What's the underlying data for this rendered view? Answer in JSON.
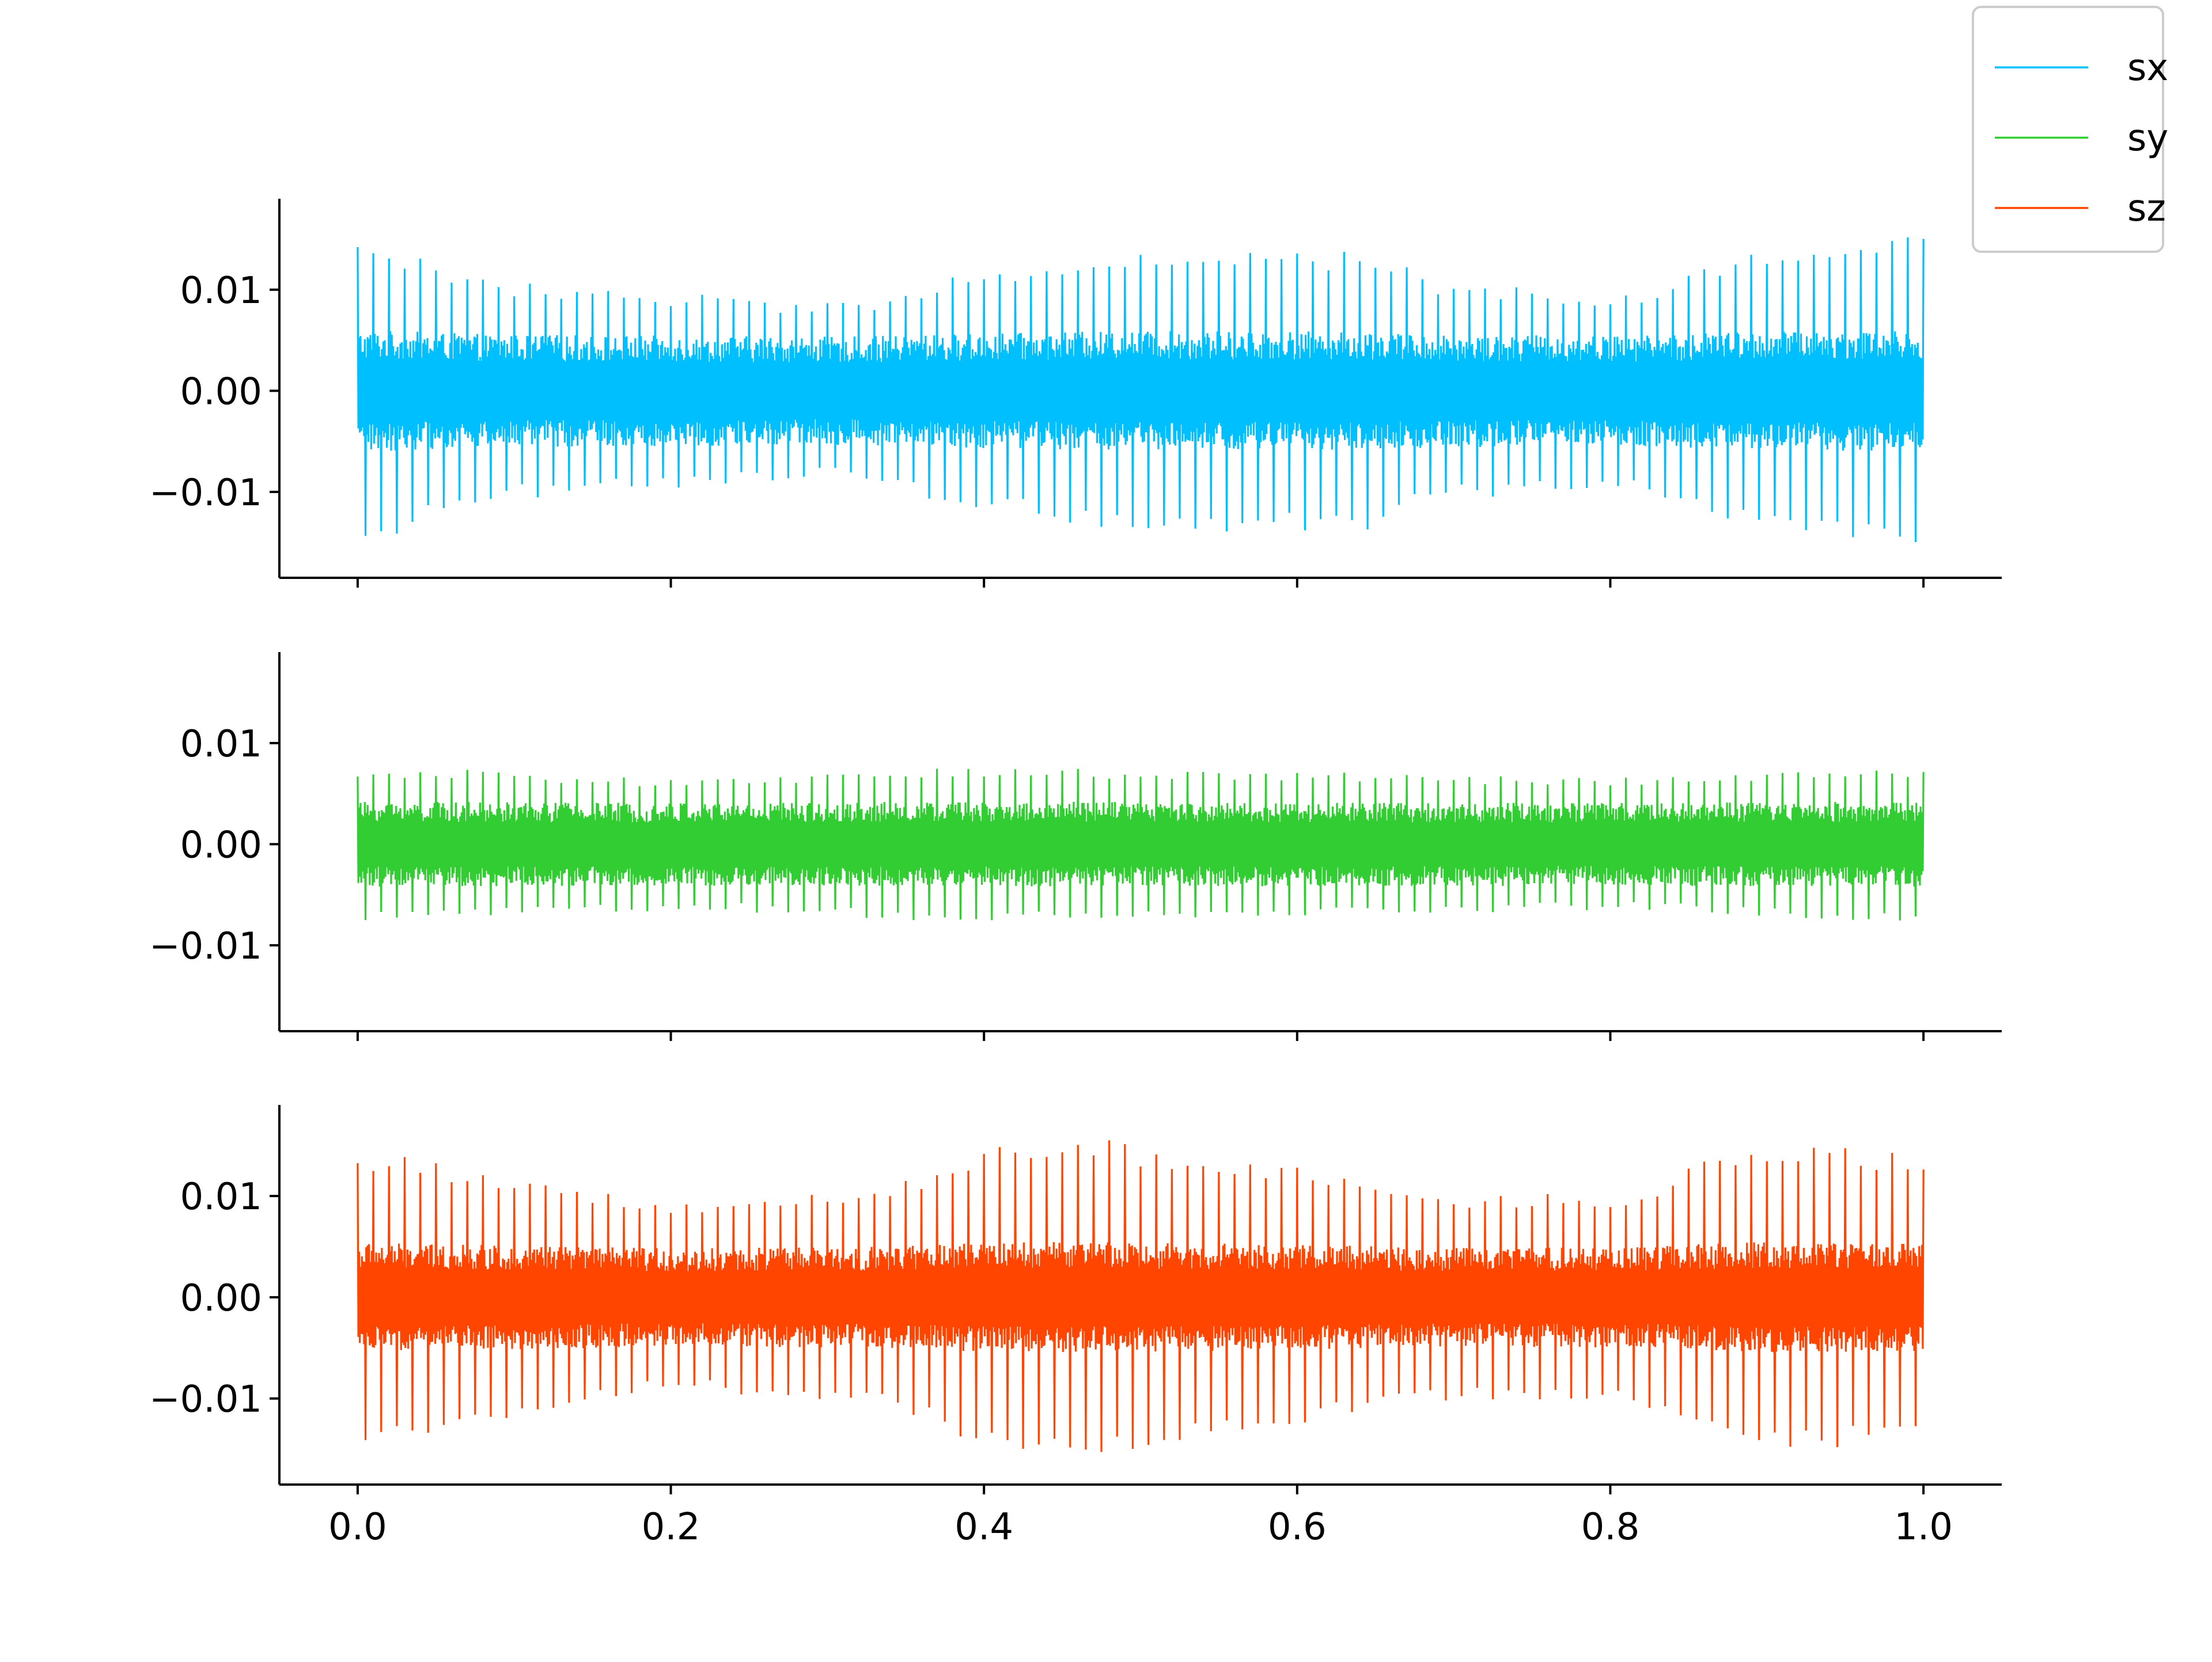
{
  "chart_data": [
    {
      "type": "line",
      "title": "",
      "xlabel": "",
      "ylabel": "",
      "xlim": [
        -0.05,
        1.05
      ],
      "ylim": [
        -0.0185,
        0.019
      ],
      "xticks": [
        0.0,
        0.2,
        0.4,
        0.6,
        0.8,
        1.0
      ],
      "yticks": [
        -0.01,
        0.0,
        0.01
      ],
      "ytick_labels": [
        "−0.01",
        "0.00",
        "0.01"
      ],
      "grid": false,
      "series": [
        {
          "name": "sx",
          "color": "#00bfff",
          "description_values": {
            "x_range": [
              0.0,
              1.0
            ],
            "dense_band_amplitude": 0.005,
            "spike_envelope": [
              [
                0.0,
                0.0145
              ],
              [
                0.1,
                0.0105
              ],
              [
                0.2,
                0.0095
              ],
              [
                0.3,
                0.0085
              ],
              [
                0.42,
                0.012
              ],
              [
                0.5,
                0.014
              ],
              [
                0.64,
                0.0135
              ],
              [
                0.7,
                0.0105
              ],
              [
                0.8,
                0.0095
              ],
              [
                0.9,
                0.0135
              ],
              [
                1.0,
                0.015
              ]
            ]
          }
        }
      ]
    },
    {
      "type": "line",
      "title": "",
      "xlabel": "",
      "ylabel": "",
      "xlim": [
        -0.05,
        1.05
      ],
      "ylim": [
        -0.0185,
        0.019
      ],
      "xticks": [
        0.0,
        0.2,
        0.4,
        0.6,
        0.8,
        1.0
      ],
      "yticks": [
        -0.01,
        0.0,
        0.01
      ],
      "ytick_labels": [
        "−0.01",
        "0.00",
        "0.01"
      ],
      "grid": false,
      "series": [
        {
          "name": "sy",
          "color": "#32cd32",
          "description_values": {
            "x_range": [
              0.0,
              1.0
            ],
            "dense_band_amplitude": 0.004,
            "spike_envelope": [
              [
                0.0,
                0.0075
              ],
              [
                0.2,
                0.0065
              ],
              [
                0.4,
                0.0075
              ],
              [
                0.6,
                0.007
              ],
              [
                0.8,
                0.0065
              ],
              [
                1.0,
                0.0075
              ]
            ]
          }
        }
      ]
    },
    {
      "type": "line",
      "title": "",
      "xlabel": "",
      "ylabel": "",
      "xlim": [
        -0.05,
        1.05
      ],
      "ylim": [
        -0.0185,
        0.019
      ],
      "xticks": [
        0.0,
        0.2,
        0.4,
        0.6,
        0.8,
        1.0
      ],
      "xtick_labels": [
        "0.0",
        "0.2",
        "0.4",
        "0.6",
        "0.8",
        "1.0"
      ],
      "yticks": [
        -0.01,
        0.0,
        0.01
      ],
      "ytick_labels": [
        "−0.01",
        "0.00",
        "0.01"
      ],
      "grid": false,
      "series": [
        {
          "name": "sz",
          "color": "#ff4500",
          "description_values": {
            "x_range": [
              0.0,
              1.0
            ],
            "dense_band_amplitude": 0.0045,
            "spike_envelope": [
              [
                0.0,
                0.014
              ],
              [
                0.1,
                0.012
              ],
              [
                0.2,
                0.009
              ],
              [
                0.3,
                0.01
              ],
              [
                0.45,
                0.0158
              ],
              [
                0.55,
                0.0135
              ],
              [
                0.7,
                0.01
              ],
              [
                0.8,
                0.01
              ],
              [
                0.9,
                0.015
              ],
              [
                1.0,
                0.014
              ]
            ]
          }
        }
      ]
    }
  ],
  "legend": {
    "placement": "top-right",
    "entries": [
      {
        "label": "sx",
        "color": "#00bfff"
      },
      {
        "label": "sy",
        "color": "#32cd32"
      },
      {
        "label": "sz",
        "color": "#ff4500"
      }
    ]
  }
}
